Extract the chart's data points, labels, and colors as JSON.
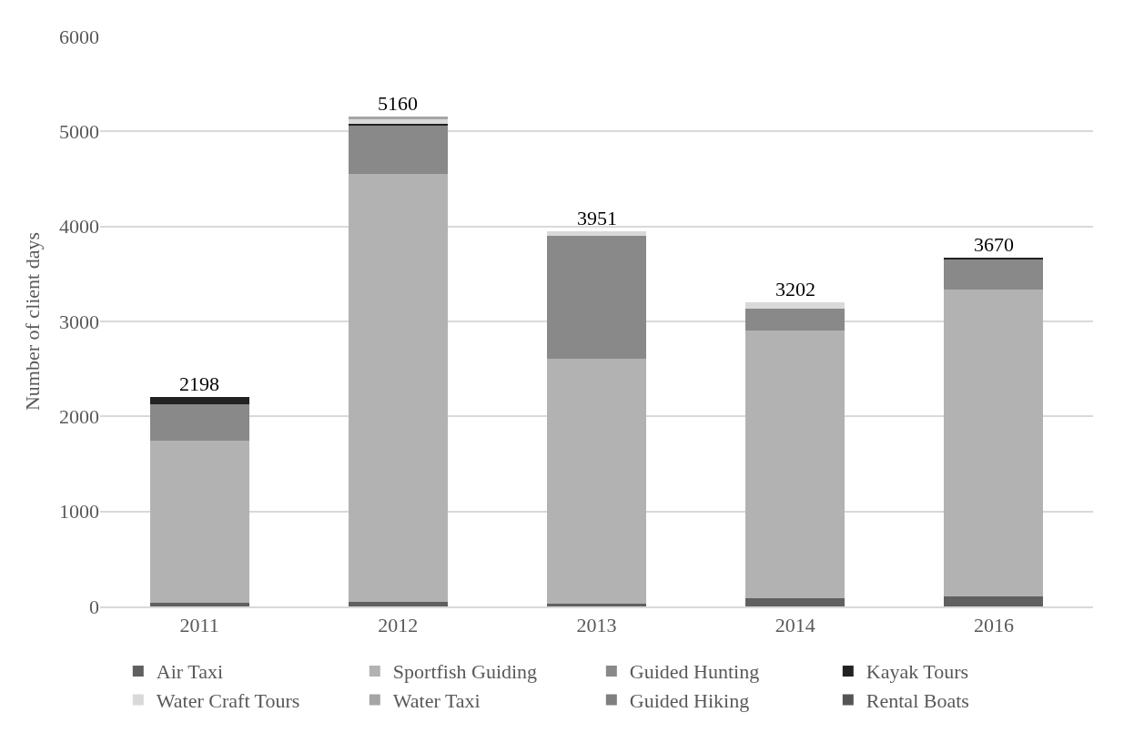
{
  "chart_data": {
    "type": "bar",
    "stacked": true,
    "ylabel": "Number of client days",
    "categories": [
      "2011",
      "2012",
      "2013",
      "2014",
      "2016"
    ],
    "series": [
      {
        "name": "Air Taxi",
        "color": "#606060",
        "values": [
          40,
          50,
          30,
          90,
          110
        ]
      },
      {
        "name": "Sportfish Guiding",
        "color": "#b2b2b2",
        "values": [
          1700,
          4500,
          2580,
          2810,
          3230
        ]
      },
      {
        "name": "Guided Hunting",
        "color": "#898989",
        "values": [
          390,
          520,
          1290,
          230,
          310
        ]
      },
      {
        "name": "Kayak Tours",
        "color": "#222222",
        "values": [
          70,
          10,
          null,
          null,
          20
        ]
      },
      {
        "name": "Water Craft Tours",
        "color": "#d9d9d9",
        "values": [
          null,
          50,
          50,
          70,
          null
        ]
      },
      {
        "name": "Water Taxi",
        "color": "#a5a5a5",
        "values": [
          null,
          30,
          null,
          null,
          null
        ]
      },
      {
        "name": "Guided Hiking",
        "color": "#7f7f7f",
        "values": [
          null,
          null,
          null,
          null,
          null
        ]
      },
      {
        "name": "Rental Boats",
        "color": "#555555",
        "values": [
          null,
          null,
          null,
          null,
          null
        ]
      }
    ],
    "totals": [
      "2198",
      "5160",
      "3951",
      "3202",
      "3670"
    ],
    "ylim": [
      0,
      6000
    ],
    "yticks": [
      0,
      1000,
      2000,
      3000,
      4000,
      5000,
      6000
    ],
    "grid": "y",
    "legend": "bottom"
  }
}
